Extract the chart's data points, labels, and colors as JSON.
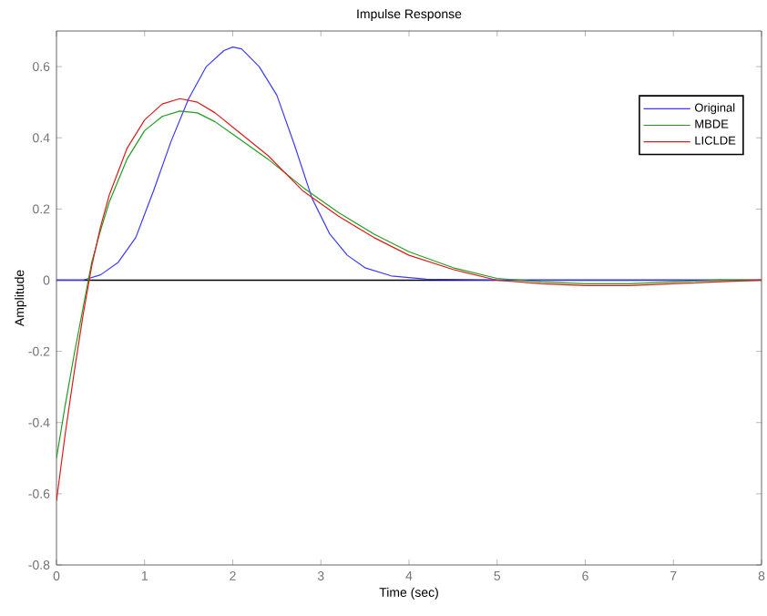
{
  "chart_data": {
    "type": "line",
    "title": "Impulse Response",
    "xlabel": "Time (sec)",
    "ylabel": "Amplitude",
    "xlim": [
      0,
      8
    ],
    "ylim": [
      -0.8,
      0.7
    ],
    "xticks": [
      0,
      1,
      2,
      3,
      4,
      5,
      6,
      7,
      8
    ],
    "yticks": [
      -0.8,
      -0.6,
      -0.4,
      -0.2,
      0,
      0.2,
      0.4,
      0.6
    ],
    "legend": "top right",
    "grid": false,
    "marker": "none",
    "line_style": "solid",
    "ref_lines": [
      {
        "axis": "y",
        "value": 0,
        "color": "#000000"
      }
    ],
    "series": [
      {
        "name": "Original",
        "color": "#3a3aff",
        "x": [
          0,
          0.3,
          0.5,
          0.7,
          0.9,
          1.1,
          1.3,
          1.5,
          1.7,
          1.9,
          2.0,
          2.1,
          2.3,
          2.5,
          2.7,
          2.9,
          3.1,
          3.3,
          3.5,
          3.8,
          4.2,
          5,
          6,
          7,
          8
        ],
        "values": [
          0,
          0,
          0.015,
          0.05,
          0.12,
          0.25,
          0.39,
          0.51,
          0.6,
          0.645,
          0.655,
          0.65,
          0.6,
          0.52,
          0.38,
          0.23,
          0.13,
          0.07,
          0.035,
          0.012,
          0.003,
          0,
          0,
          0,
          0
        ]
      },
      {
        "name": "MBDE",
        "color": "#1f9f1f",
        "x": [
          0,
          0.1,
          0.2,
          0.3,
          0.4,
          0.5,
          0.6,
          0.8,
          1.0,
          1.2,
          1.4,
          1.6,
          1.8,
          2.0,
          2.4,
          2.8,
          3.2,
          3.6,
          4.0,
          4.5,
          5,
          5.5,
          6,
          6.5,
          7,
          7.5,
          8
        ],
        "values": [
          -0.5,
          -0.35,
          -0.21,
          -0.08,
          0.05,
          0.14,
          0.22,
          0.34,
          0.42,
          0.46,
          0.475,
          0.47,
          0.445,
          0.41,
          0.34,
          0.26,
          0.19,
          0.13,
          0.08,
          0.035,
          0.005,
          -0.005,
          -0.01,
          -0.01,
          -0.005,
          0,
          0
        ]
      },
      {
        "name": "LICLDE",
        "color": "#e01a1a",
        "x": [
          0,
          0.1,
          0.2,
          0.3,
          0.4,
          0.5,
          0.6,
          0.8,
          1.0,
          1.2,
          1.4,
          1.6,
          1.8,
          2.0,
          2.4,
          2.8,
          3.2,
          3.6,
          4.0,
          4.5,
          5,
          5.5,
          6,
          6.5,
          7,
          7.5,
          8
        ],
        "values": [
          -0.62,
          -0.43,
          -0.26,
          -0.1,
          0.04,
          0.15,
          0.24,
          0.37,
          0.45,
          0.495,
          0.51,
          0.5,
          0.47,
          0.43,
          0.35,
          0.25,
          0.18,
          0.12,
          0.07,
          0.03,
          0,
          -0.01,
          -0.015,
          -0.015,
          -0.01,
          -0.005,
          0
        ]
      }
    ]
  }
}
